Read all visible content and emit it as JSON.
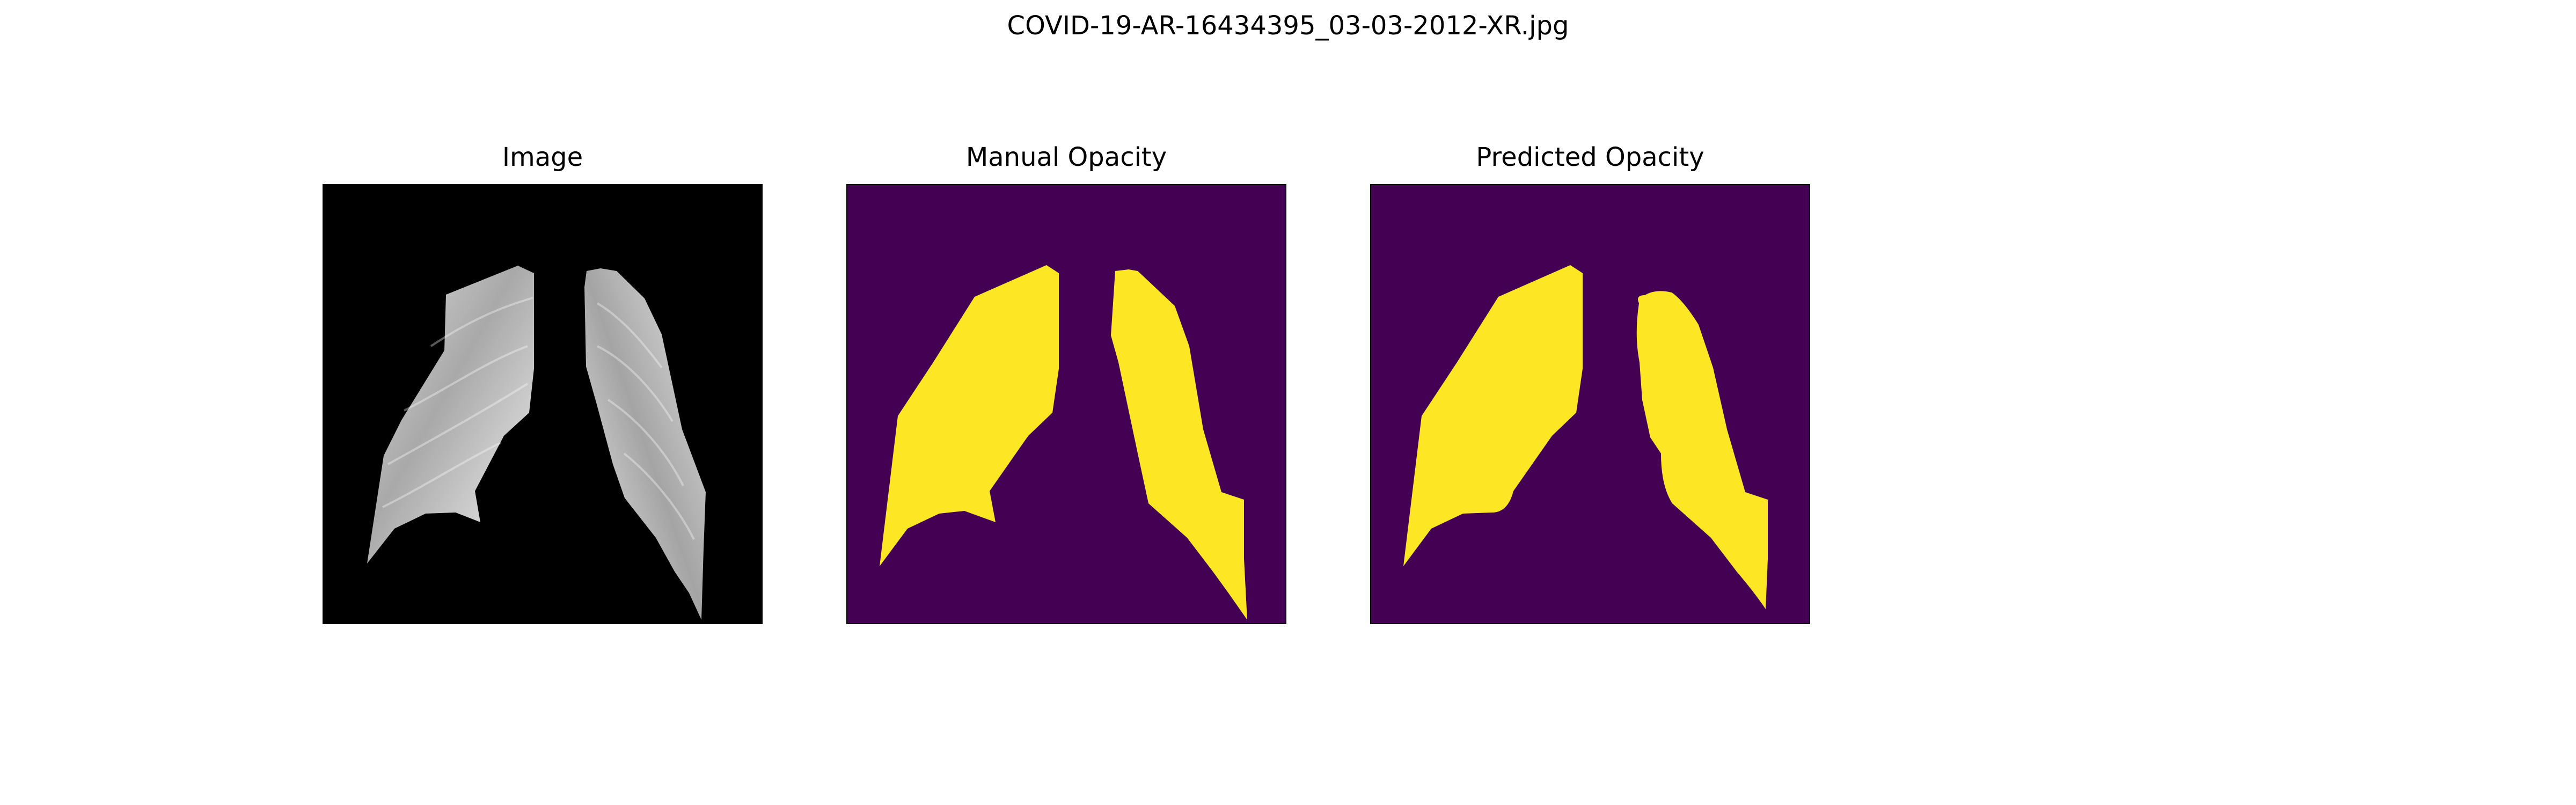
{
  "figure": {
    "suptitle": "COVID-19-AR-16434395_03-03-2012-XR.jpg",
    "panels": [
      {
        "title": "Image"
      },
      {
        "title": "Manual Opacity"
      },
      {
        "title": "Predicted Opacity"
      }
    ]
  },
  "colors": {
    "background": "#ffffff",
    "xray_background": "#000000",
    "mask_background": "#440154",
    "mask_foreground": "#fde725",
    "lung_light": "#f0f0f0",
    "lung_mid": "#bdbdbd",
    "lung_dark": "#8a8a8a"
  }
}
